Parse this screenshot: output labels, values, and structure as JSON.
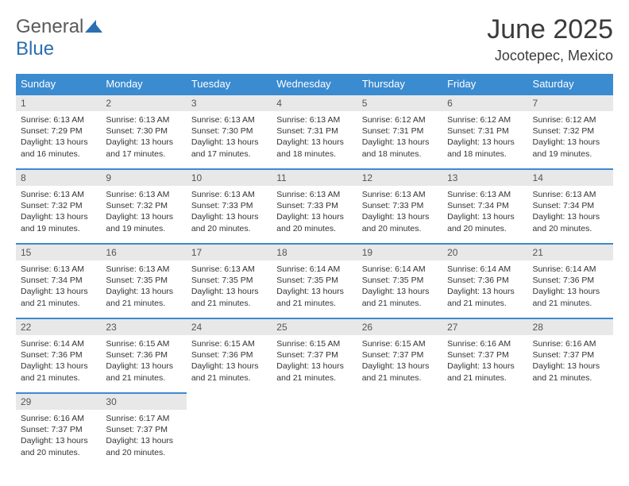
{
  "logo": {
    "text1": "General",
    "text2": "Blue"
  },
  "title": "June 2025",
  "location": "Jocotepec, Mexico",
  "colors": {
    "header_bg": "#3b8bd0",
    "header_text": "#ffffff",
    "daynum_bg": "#e8e8e8",
    "row_border": "#3b8bd0",
    "logo_gray": "#5a5a5a",
    "logo_blue": "#2c6fb0"
  },
  "weekdays": [
    "Sunday",
    "Monday",
    "Tuesday",
    "Wednesday",
    "Thursday",
    "Friday",
    "Saturday"
  ],
  "days": [
    {
      "n": "1",
      "sr": "Sunrise: 6:13 AM",
      "ss": "Sunset: 7:29 PM",
      "d1": "Daylight: 13 hours",
      "d2": "and 16 minutes."
    },
    {
      "n": "2",
      "sr": "Sunrise: 6:13 AM",
      "ss": "Sunset: 7:30 PM",
      "d1": "Daylight: 13 hours",
      "d2": "and 17 minutes."
    },
    {
      "n": "3",
      "sr": "Sunrise: 6:13 AM",
      "ss": "Sunset: 7:30 PM",
      "d1": "Daylight: 13 hours",
      "d2": "and 17 minutes."
    },
    {
      "n": "4",
      "sr": "Sunrise: 6:13 AM",
      "ss": "Sunset: 7:31 PM",
      "d1": "Daylight: 13 hours",
      "d2": "and 18 minutes."
    },
    {
      "n": "5",
      "sr": "Sunrise: 6:12 AM",
      "ss": "Sunset: 7:31 PM",
      "d1": "Daylight: 13 hours",
      "d2": "and 18 minutes."
    },
    {
      "n": "6",
      "sr": "Sunrise: 6:12 AM",
      "ss": "Sunset: 7:31 PM",
      "d1": "Daylight: 13 hours",
      "d2": "and 18 minutes."
    },
    {
      "n": "7",
      "sr": "Sunrise: 6:12 AM",
      "ss": "Sunset: 7:32 PM",
      "d1": "Daylight: 13 hours",
      "d2": "and 19 minutes."
    },
    {
      "n": "8",
      "sr": "Sunrise: 6:13 AM",
      "ss": "Sunset: 7:32 PM",
      "d1": "Daylight: 13 hours",
      "d2": "and 19 minutes."
    },
    {
      "n": "9",
      "sr": "Sunrise: 6:13 AM",
      "ss": "Sunset: 7:32 PM",
      "d1": "Daylight: 13 hours",
      "d2": "and 19 minutes."
    },
    {
      "n": "10",
      "sr": "Sunrise: 6:13 AM",
      "ss": "Sunset: 7:33 PM",
      "d1": "Daylight: 13 hours",
      "d2": "and 20 minutes."
    },
    {
      "n": "11",
      "sr": "Sunrise: 6:13 AM",
      "ss": "Sunset: 7:33 PM",
      "d1": "Daylight: 13 hours",
      "d2": "and 20 minutes."
    },
    {
      "n": "12",
      "sr": "Sunrise: 6:13 AM",
      "ss": "Sunset: 7:33 PM",
      "d1": "Daylight: 13 hours",
      "d2": "and 20 minutes."
    },
    {
      "n": "13",
      "sr": "Sunrise: 6:13 AM",
      "ss": "Sunset: 7:34 PM",
      "d1": "Daylight: 13 hours",
      "d2": "and 20 minutes."
    },
    {
      "n": "14",
      "sr": "Sunrise: 6:13 AM",
      "ss": "Sunset: 7:34 PM",
      "d1": "Daylight: 13 hours",
      "d2": "and 20 minutes."
    },
    {
      "n": "15",
      "sr": "Sunrise: 6:13 AM",
      "ss": "Sunset: 7:34 PM",
      "d1": "Daylight: 13 hours",
      "d2": "and 21 minutes."
    },
    {
      "n": "16",
      "sr": "Sunrise: 6:13 AM",
      "ss": "Sunset: 7:35 PM",
      "d1": "Daylight: 13 hours",
      "d2": "and 21 minutes."
    },
    {
      "n": "17",
      "sr": "Sunrise: 6:13 AM",
      "ss": "Sunset: 7:35 PM",
      "d1": "Daylight: 13 hours",
      "d2": "and 21 minutes."
    },
    {
      "n": "18",
      "sr": "Sunrise: 6:14 AM",
      "ss": "Sunset: 7:35 PM",
      "d1": "Daylight: 13 hours",
      "d2": "and 21 minutes."
    },
    {
      "n": "19",
      "sr": "Sunrise: 6:14 AM",
      "ss": "Sunset: 7:35 PM",
      "d1": "Daylight: 13 hours",
      "d2": "and 21 minutes."
    },
    {
      "n": "20",
      "sr": "Sunrise: 6:14 AM",
      "ss": "Sunset: 7:36 PM",
      "d1": "Daylight: 13 hours",
      "d2": "and 21 minutes."
    },
    {
      "n": "21",
      "sr": "Sunrise: 6:14 AM",
      "ss": "Sunset: 7:36 PM",
      "d1": "Daylight: 13 hours",
      "d2": "and 21 minutes."
    },
    {
      "n": "22",
      "sr": "Sunrise: 6:14 AM",
      "ss": "Sunset: 7:36 PM",
      "d1": "Daylight: 13 hours",
      "d2": "and 21 minutes."
    },
    {
      "n": "23",
      "sr": "Sunrise: 6:15 AM",
      "ss": "Sunset: 7:36 PM",
      "d1": "Daylight: 13 hours",
      "d2": "and 21 minutes."
    },
    {
      "n": "24",
      "sr": "Sunrise: 6:15 AM",
      "ss": "Sunset: 7:36 PM",
      "d1": "Daylight: 13 hours",
      "d2": "and 21 minutes."
    },
    {
      "n": "25",
      "sr": "Sunrise: 6:15 AM",
      "ss": "Sunset: 7:37 PM",
      "d1": "Daylight: 13 hours",
      "d2": "and 21 minutes."
    },
    {
      "n": "26",
      "sr": "Sunrise: 6:15 AM",
      "ss": "Sunset: 7:37 PM",
      "d1": "Daylight: 13 hours",
      "d2": "and 21 minutes."
    },
    {
      "n": "27",
      "sr": "Sunrise: 6:16 AM",
      "ss": "Sunset: 7:37 PM",
      "d1": "Daylight: 13 hours",
      "d2": "and 21 minutes."
    },
    {
      "n": "28",
      "sr": "Sunrise: 6:16 AM",
      "ss": "Sunset: 7:37 PM",
      "d1": "Daylight: 13 hours",
      "d2": "and 21 minutes."
    },
    {
      "n": "29",
      "sr": "Sunrise: 6:16 AM",
      "ss": "Sunset: 7:37 PM",
      "d1": "Daylight: 13 hours",
      "d2": "and 20 minutes."
    },
    {
      "n": "30",
      "sr": "Sunrise: 6:17 AM",
      "ss": "Sunset: 7:37 PM",
      "d1": "Daylight: 13 hours",
      "d2": "and 20 minutes."
    }
  ]
}
